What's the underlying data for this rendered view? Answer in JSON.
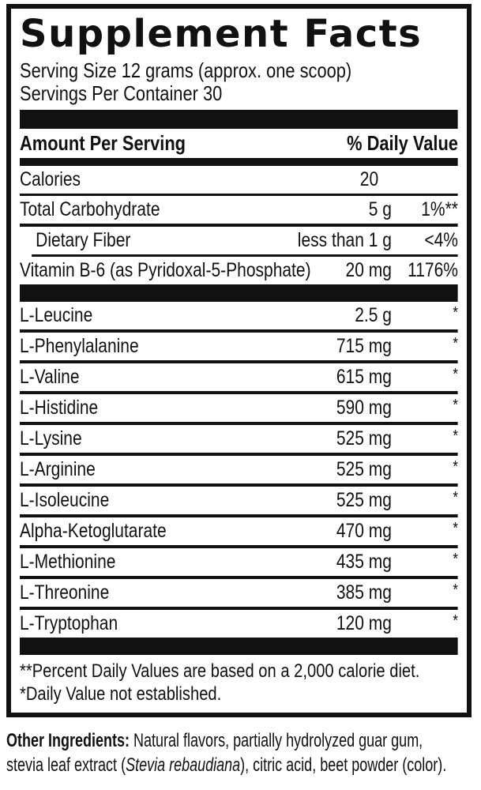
{
  "panel": {
    "title": "Supplement Facts",
    "serving_size": "Serving Size 12 grams (approx. one scoop)",
    "servings_per_container": "Servings Per Container 30",
    "column_headers": {
      "left": "Amount Per Serving",
      "right": "% Daily Value"
    },
    "rows": [
      {
        "name": "Calories",
        "amount": "20",
        "dv": "",
        "indent": false,
        "sep": "thin",
        "bar_after": false
      },
      {
        "name": "Total Carbohydrate",
        "amount": "5 g",
        "dv": "1%**",
        "indent": false,
        "sep": "normal",
        "bar_after": false
      },
      {
        "name": "Dietary Fiber",
        "amount": "less than 1 g",
        "dv": "<4%",
        "indent": true,
        "sep": "indent",
        "bar_after": false
      },
      {
        "name": "Vitamin B-6 (as Pyridoxal-5-Phosphate)",
        "amount": "20 mg",
        "dv": "1176%",
        "indent": false,
        "sep": "none",
        "bar_after": true
      },
      {
        "name": "L-Leucine",
        "amount": "2.5 g",
        "dv": "*",
        "indent": false,
        "sep": "normal",
        "bar_after": false
      },
      {
        "name": "L-Phenylalanine",
        "amount": "715 mg",
        "dv": "*",
        "indent": false,
        "sep": "normal",
        "bar_after": false
      },
      {
        "name": "L-Valine",
        "amount": "615 mg",
        "dv": "*",
        "indent": false,
        "sep": "normal",
        "bar_after": false
      },
      {
        "name": "L-Histidine",
        "amount": "590 mg",
        "dv": "*",
        "indent": false,
        "sep": "normal",
        "bar_after": false
      },
      {
        "name": "L-Lysine",
        "amount": "525 mg",
        "dv": "*",
        "indent": false,
        "sep": "normal",
        "bar_after": false
      },
      {
        "name": "L-Arginine",
        "amount": "525 mg",
        "dv": "*",
        "indent": false,
        "sep": "normal",
        "bar_after": false
      },
      {
        "name": "L-Isoleucine",
        "amount": "525 mg",
        "dv": "*",
        "indent": false,
        "sep": "normal",
        "bar_after": false
      },
      {
        "name": "Alpha-Ketoglutarate",
        "amount": "470 mg",
        "dv": "*",
        "indent": false,
        "sep": "normal",
        "bar_after": false
      },
      {
        "name": "L-Methionine",
        "amount": "435 mg",
        "dv": "*",
        "indent": false,
        "sep": "normal",
        "bar_after": false
      },
      {
        "name": "L-Threonine",
        "amount": "385 mg",
        "dv": "*",
        "indent": false,
        "sep": "normal",
        "bar_after": false
      },
      {
        "name": "L-Tryptophan",
        "amount": "120 mg",
        "dv": "*",
        "indent": false,
        "sep": "none",
        "bar_after": true
      }
    ],
    "footnotes": [
      "**Percent Daily Values are based on a 2,000 calorie diet.",
      "*Daily Value not established."
    ]
  },
  "other_ingredients": {
    "label": "Other Ingredients:",
    "line1_rest": " Natural flavors, partially hydrolyzed guar gum,",
    "line2_before_italic": "stevia leaf extract (",
    "line2_italic": "Stevia rebaudiana",
    "line2_after_italic": "), citric acid, beet powder (color)."
  },
  "colors": {
    "ink": "#111111",
    "background": "#ffffff"
  }
}
